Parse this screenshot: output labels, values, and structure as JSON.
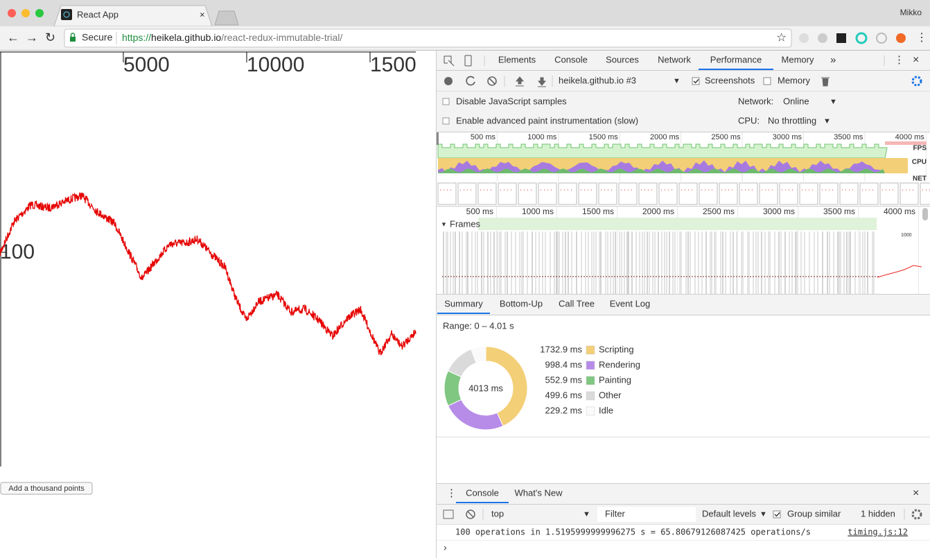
{
  "browser": {
    "tab_title": "React App",
    "profile": "Mikko",
    "secure": "Secure",
    "url": {
      "scheme": "https://",
      "host": "heikela.github.io",
      "path": "/react-redux-immutable-trial/"
    }
  },
  "page": {
    "x_axis_labels": [
      "5000",
      "10000",
      "1500"
    ],
    "y_axis_label": "100",
    "button": "Add a thousand points"
  },
  "devtools": {
    "tabs": [
      "Elements",
      "Console",
      "Sources",
      "Network",
      "Performance",
      "Memory"
    ],
    "active_tab": 4,
    "toolbar": {
      "recording": "heikela.github.io #3",
      "screenshots": "Screenshots",
      "memory": "Memory"
    },
    "settings": {
      "disable_js": "Disable JavaScript samples",
      "paint": "Enable advanced paint instrumentation (slow)",
      "network_label": "Network:",
      "network": "Online",
      "cpu_label": "CPU:",
      "cpu": "No throttling"
    },
    "overview": {
      "ticks": [
        "500 ms",
        "1000 ms",
        "1500 ms",
        "2000 ms",
        "2500 ms",
        "3000 ms",
        "3500 ms",
        "4000 ms"
      ],
      "tracks": [
        "FPS",
        "CPU",
        "NET"
      ]
    },
    "timeline": {
      "ticks": [
        "500 ms",
        "1000 ms",
        "1500 ms",
        "2000 ms",
        "2500 ms",
        "3000 ms",
        "3500 ms",
        "4000 ms"
      ],
      "frames": "Frames",
      "frame_label": "1000"
    },
    "details_tabs": [
      "Summary",
      "Bottom-Up",
      "Call Tree",
      "Event Log"
    ],
    "active_details_tab": 0,
    "summary": {
      "range": "Range: 0 – 4.01 s",
      "total": "4013 ms",
      "items": [
        {
          "name": "Scripting",
          "value": 1732.9,
          "label": "1732.9 ms",
          "color": "#f3cf77"
        },
        {
          "name": "Rendering",
          "value": 998.4,
          "label": "998.4 ms",
          "color": "#b78ce8"
        },
        {
          "name": "Painting",
          "value": 552.9,
          "label": "552.9 ms",
          "color": "#80c781"
        },
        {
          "name": "Other",
          "value": 499.6,
          "label": "499.6 ms",
          "color": "#dadada"
        },
        {
          "name": "Idle",
          "value": 229.2,
          "label": "229.2 ms",
          "color": "#fafafa"
        }
      ]
    }
  },
  "console": {
    "tabs": [
      "Console",
      "What's New"
    ],
    "active_tab": 0,
    "context": "top",
    "filter": "Filter",
    "levels": "Default levels",
    "group_similar": "Group similar",
    "hidden": "1 hidden",
    "message": "100 operations in 1.5195999999996275 s = 65.80679126087425 operations/s",
    "source": "timing.js:12"
  }
}
